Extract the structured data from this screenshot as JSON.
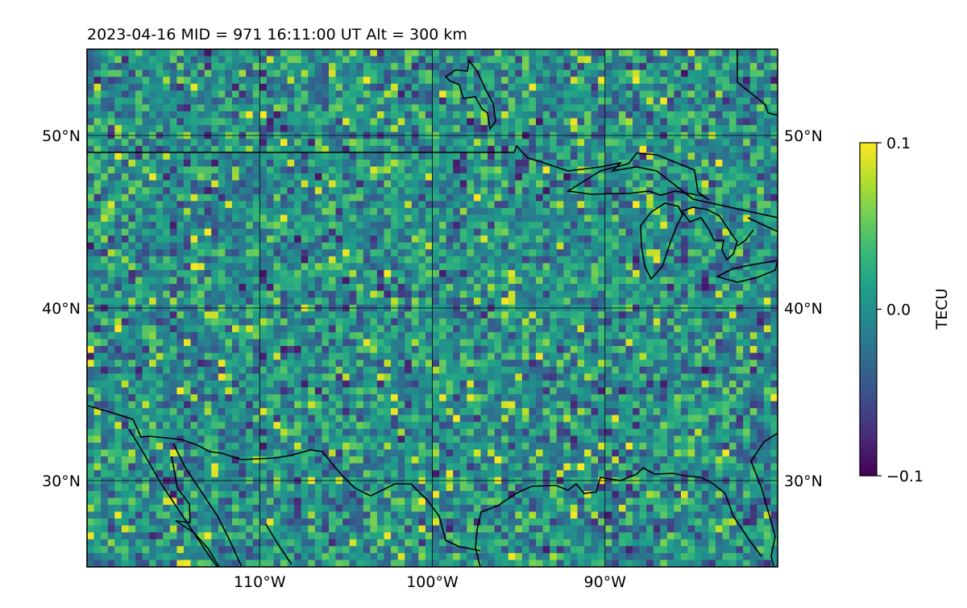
{
  "header": {
    "title": "2023-04-16  MID = 971    16:11:00  UT  Alt = 300 km"
  },
  "map": {
    "lon_range": [
      -120,
      -80
    ],
    "lat_range": [
      25,
      55
    ],
    "lon_ticks": [
      {
        "value": -110,
        "label": "110°W"
      },
      {
        "value": -100,
        "label": "100°W"
      },
      {
        "value": -90,
        "label": "90°W"
      }
    ],
    "lat_ticks": [
      {
        "value": 30,
        "label": "30°N"
      },
      {
        "value": 40,
        "label": "40°N"
      },
      {
        "value": 50,
        "label": "50°N"
      }
    ],
    "gridlines": true,
    "colormap": "viridis"
  },
  "colorbar": {
    "label": "TECU",
    "min": -0.1,
    "max": 0.1,
    "ticks": [
      {
        "value": 0.1,
        "label": "0.1"
      },
      {
        "value": 0.0,
        "label": "0.0"
      },
      {
        "value": -0.1,
        "label": "−0.1"
      }
    ],
    "colors": [
      "#440154",
      "#482878",
      "#3e4a89",
      "#31688e",
      "#26828e",
      "#1f9e89",
      "#35b779",
      "#6ece58",
      "#b5de2b",
      "#fde725"
    ]
  }
}
